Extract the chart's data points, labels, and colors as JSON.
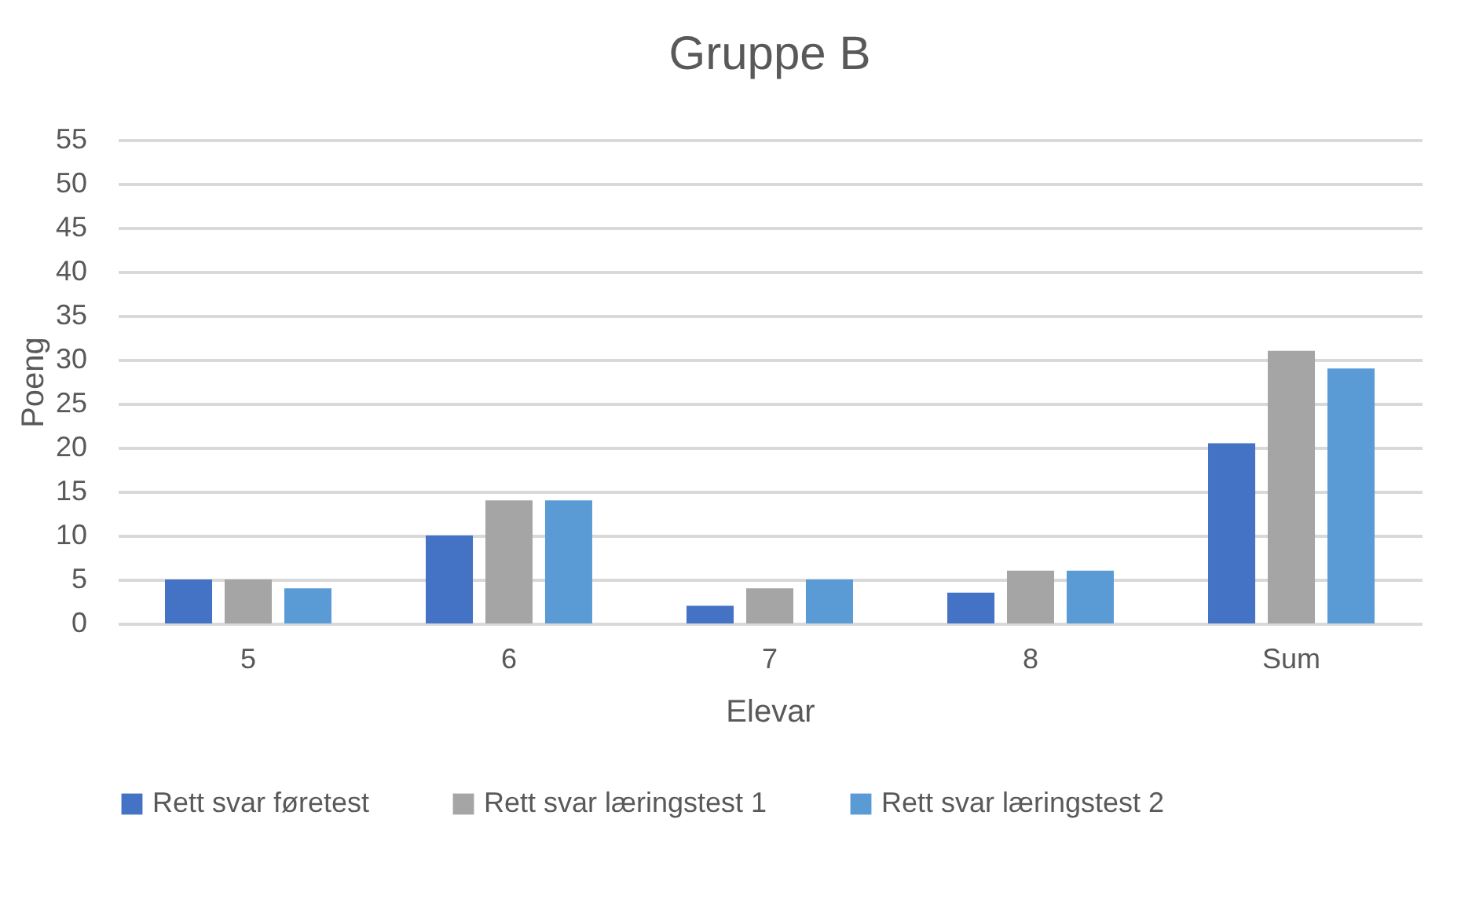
{
  "chart_data": {
    "type": "bar",
    "title": "Gruppe B",
    "xlabel": "Elevar",
    "ylabel": "Poeng",
    "categories": [
      "5",
      "6",
      "7",
      "8",
      "Sum"
    ],
    "series": [
      {
        "name": "Rett svar føretest",
        "color": "#4472c4",
        "values": [
          5,
          10,
          2,
          3.5,
          20.5
        ]
      },
      {
        "name": "Rett svar læringstest 1",
        "color": "#a5a5a5",
        "values": [
          5,
          14,
          4,
          6,
          31
        ]
      },
      {
        "name": "Rett svar læringstest 2",
        "color": "#5b9bd5",
        "values": [
          4,
          14,
          5,
          6,
          29
        ]
      }
    ],
    "ylim": [
      0,
      55
    ],
    "yticks": [
      0,
      5,
      10,
      15,
      20,
      25,
      30,
      35,
      40,
      45,
      50,
      55
    ],
    "grid": "y",
    "legend": "bottom"
  }
}
